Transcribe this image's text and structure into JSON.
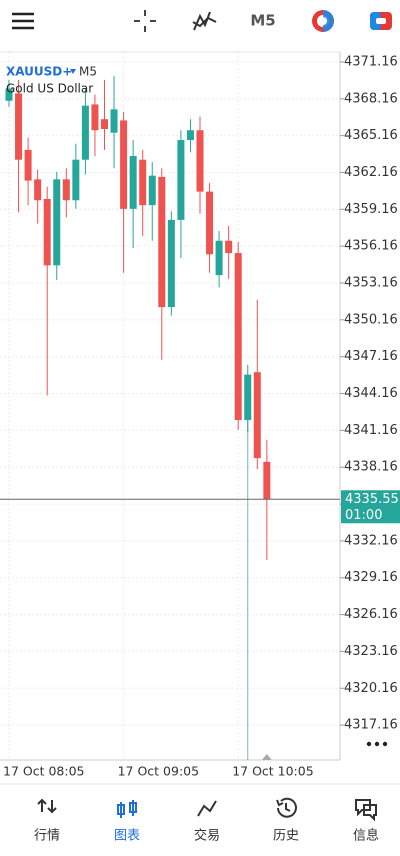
{
  "toolbar": {
    "timeframe": "M5"
  },
  "chart_data": {
    "type": "candlestick",
    "symbol": "XAUUSD+",
    "timeframe": "M5",
    "description": "Gold US Dollar",
    "categories": [
      "17 Oct 08:05",
      null,
      null,
      null,
      null,
      null,
      null,
      null,
      null,
      null,
      null,
      null,
      "17 Oct 09:05",
      null,
      null,
      null,
      null,
      null,
      null,
      null,
      null,
      null,
      null,
      null,
      "17 Oct 10:05",
      null,
      null,
      null
    ],
    "open": [
      4368.0,
      4368.6,
      4364.0,
      4361.6,
      4360.0,
      4354.6,
      4361.6,
      4359.9,
      4363.2,
      4367.7,
      4366.5,
      4365.4,
      4366.4,
      4359.2,
      4363.2,
      4359.5,
      4361.8,
      4351.2,
      4358.3,
      4364.8,
      4365.6,
      4360.6,
      4353.8,
      4356.6,
      4355.6,
      4342.0,
      4345.9,
      4338.6
    ],
    "high": [
      4369.7,
      4369.7,
      4365.0,
      4362.4,
      4361.0,
      4362.2,
      4362.5,
      4364.5,
      4369.0,
      4368.5,
      4369.7,
      4370.0,
      4367.1,
      4364.8,
      4364.0,
      4363.0,
      4362.5,
      4359.0,
      4365.6,
      4366.5,
      4366.7,
      4361.3,
      4357.4,
      4357.8,
      4356.5,
      4346.5,
      4351.8,
      4340.4
    ],
    "low": [
      4367.5,
      4358.9,
      4359.5,
      4358.0,
      4344.0,
      4353.4,
      4358.5,
      4359.2,
      4362.0,
      4363.5,
      4364.0,
      4362.5,
      4354.0,
      4356.0,
      4357.0,
      4356.6,
      4346.9,
      4350.5,
      4355.2,
      4363.8,
      4358.8,
      4354.0,
      4352.8,
      4353.5,
      4341.2,
      4341.0,
      4338.0,
      4330.6
    ],
    "close": [
      4369.0,
      4363.2,
      4361.5,
      4359.9,
      4354.6,
      4361.6,
      4359.9,
      4363.2,
      4367.6,
      4365.6,
      4365.7,
      4367.3,
      4359.2,
      4363.5,
      4359.5,
      4361.9,
      4351.2,
      4358.3,
      4364.8,
      4365.6,
      4360.6,
      4355.5,
      4356.6,
      4355.6,
      4342.0,
      4345.7,
      4338.9,
      4335.55
    ],
    "up_color": "#26a69a",
    "down_color": "#ef5350",
    "ylim": [
      4314.32,
      4371.97
    ],
    "yticks": [
      4317.16,
      4320.16,
      4323.16,
      4326.16,
      4329.16,
      4332.16,
      4335.16,
      4338.16,
      4341.16,
      4344.16,
      4347.16,
      4350.16,
      4353.16,
      4356.16,
      4359.16,
      4362.16,
      4365.16,
      4368.16,
      4371.16
    ],
    "current_price": 4335.55,
    "countdown": "01:00",
    "grid": true
  },
  "nav": {
    "items": [
      "行情",
      "图表",
      "交易",
      "历史",
      "信息"
    ],
    "active": 1
  }
}
